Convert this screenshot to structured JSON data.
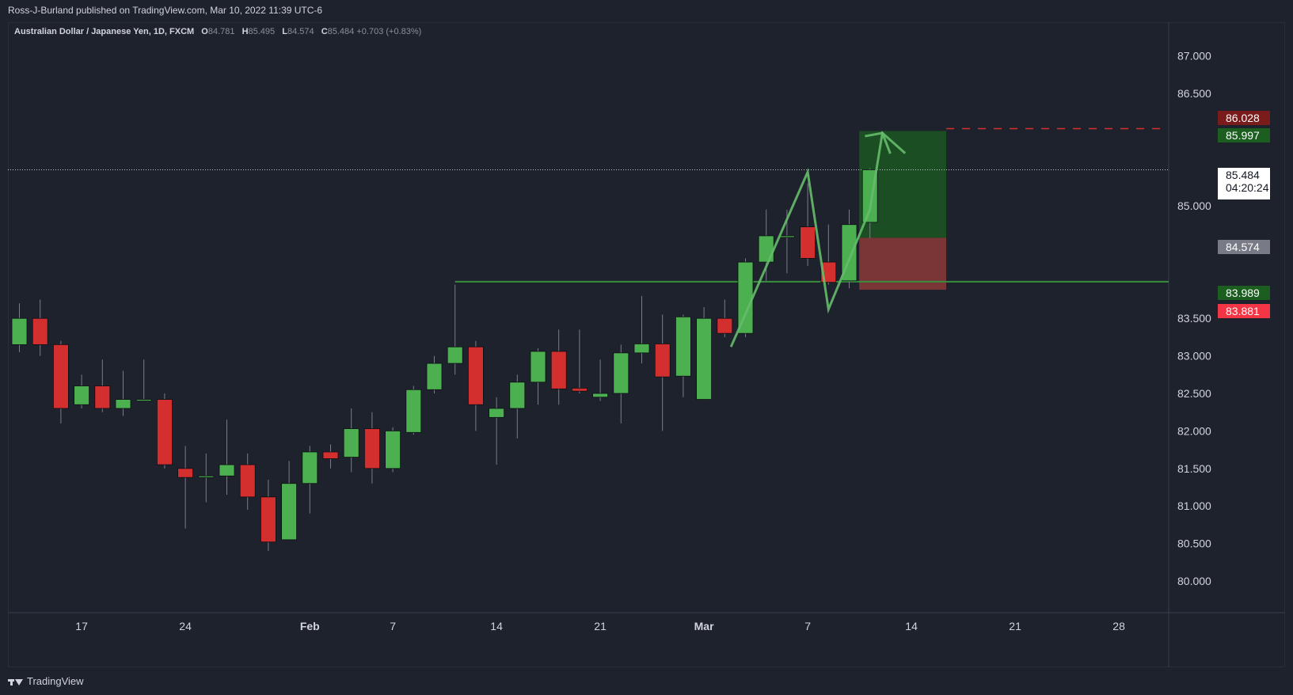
{
  "publisher": "Ross-J-Burland published on TradingView.com, Mar 10, 2022 11:39 UTC-6",
  "symbol_title": "Australian Dollar / Japanese Yen, 1D, FXCM",
  "ohlc": {
    "o_label": "O",
    "o_value": "84.781",
    "h_label": "H",
    "h_value": "85.495",
    "l_label": "L",
    "l_value": "84.574",
    "c_label": "C",
    "c_value": "85.484",
    "change": "+0.703 (+0.83%)"
  },
  "footer_brand": "TradingView",
  "price_tags": {
    "stop_top": "86.028",
    "target": "85.997",
    "last_price": "85.484",
    "countdown": "04:20:24",
    "entry": "84.574",
    "support": "83.989",
    "stop": "83.881"
  },
  "colors": {
    "background": "#1e222d",
    "up": "#4caf50",
    "down": "#d32f2f",
    "support_line": "#388e3c",
    "target_zone": "#1b5e20",
    "stop_zone": "#8b3a3a"
  },
  "chart_data": {
    "type": "candlestick",
    "title": "Australian Dollar / Japanese Yen, 1D, FXCM",
    "y_axis_ticks": [
      "87.000",
      "86.500",
      "85.000",
      "83.500",
      "83.000",
      "82.500",
      "82.000",
      "81.500",
      "81.000",
      "80.500",
      "80.000"
    ],
    "y_tick_values": [
      87.0,
      86.5,
      85.0,
      83.5,
      83.0,
      82.5,
      82.0,
      81.5,
      81.0,
      80.5,
      80.0
    ],
    "ylim": [
      79.6,
      87.5
    ],
    "x_axis_ticks": [
      {
        "label": "17",
        "index": 3
      },
      {
        "label": "24",
        "index": 8
      },
      {
        "label": "Feb",
        "index": 14
      },
      {
        "label": "7",
        "index": 18
      },
      {
        "label": "14",
        "index": 23
      },
      {
        "label": "21",
        "index": 28
      },
      {
        "label": "Mar",
        "index": 33
      },
      {
        "label": "7",
        "index": 38
      },
      {
        "label": "14",
        "index": 43
      },
      {
        "label": "21",
        "index": 48
      },
      {
        "label": "28",
        "index": 53
      }
    ],
    "candles": [
      {
        "o": 83.15,
        "h": 83.7,
        "l": 83.05,
        "c": 83.5
      },
      {
        "o": 83.5,
        "h": 83.75,
        "l": 83.0,
        "c": 83.15
      },
      {
        "o": 83.15,
        "h": 83.2,
        "l": 82.1,
        "c": 82.3
      },
      {
        "o": 82.35,
        "h": 82.75,
        "l": 82.3,
        "c": 82.6
      },
      {
        "o": 82.6,
        "h": 82.95,
        "l": 82.25,
        "c": 82.3
      },
      {
        "o": 82.3,
        "h": 82.8,
        "l": 82.2,
        "c": 82.42
      },
      {
        "o": 82.42,
        "h": 82.95,
        "l": 82.42,
        "c": 82.42
      },
      {
        "o": 82.42,
        "h": 82.5,
        "l": 81.5,
        "c": 81.55
      },
      {
        "o": 81.5,
        "h": 81.8,
        "l": 80.7,
        "c": 81.38
      },
      {
        "o": 81.38,
        "h": 81.7,
        "l": 81.05,
        "c": 81.4
      },
      {
        "o": 81.4,
        "h": 82.15,
        "l": 81.15,
        "c": 81.55
      },
      {
        "o": 81.55,
        "h": 81.7,
        "l": 80.95,
        "c": 81.12
      },
      {
        "o": 81.12,
        "h": 81.35,
        "l": 80.4,
        "c": 80.52
      },
      {
        "o": 80.55,
        "h": 81.6,
        "l": 80.55,
        "c": 81.3
      },
      {
        "o": 81.3,
        "h": 81.8,
        "l": 80.9,
        "c": 81.72
      },
      {
        "o": 81.72,
        "h": 81.82,
        "l": 81.5,
        "c": 81.63
      },
      {
        "o": 81.65,
        "h": 82.3,
        "l": 81.45,
        "c": 82.03
      },
      {
        "o": 82.03,
        "h": 82.25,
        "l": 81.3,
        "c": 81.5
      },
      {
        "o": 81.5,
        "h": 82.05,
        "l": 81.45,
        "c": 82.0
      },
      {
        "o": 81.98,
        "h": 82.6,
        "l": 81.95,
        "c": 82.55
      },
      {
        "o": 82.55,
        "h": 83.0,
        "l": 82.5,
        "c": 82.9
      },
      {
        "o": 82.9,
        "h": 83.95,
        "l": 82.75,
        "c": 83.12
      },
      {
        "o": 83.12,
        "h": 83.2,
        "l": 82.0,
        "c": 82.35
      },
      {
        "o": 82.18,
        "h": 82.45,
        "l": 81.55,
        "c": 82.3
      },
      {
        "o": 82.3,
        "h": 82.75,
        "l": 81.9,
        "c": 82.65
      },
      {
        "o": 82.65,
        "h": 83.1,
        "l": 82.35,
        "c": 83.06
      },
      {
        "o": 83.06,
        "h": 83.35,
        "l": 82.35,
        "c": 82.56
      },
      {
        "o": 82.57,
        "h": 83.35,
        "l": 82.5,
        "c": 82.53
      },
      {
        "o": 82.45,
        "h": 82.95,
        "l": 82.4,
        "c": 82.5
      },
      {
        "o": 82.5,
        "h": 83.15,
        "l": 82.1,
        "c": 83.04
      },
      {
        "o": 83.04,
        "h": 83.8,
        "l": 82.9,
        "c": 83.16
      },
      {
        "o": 83.16,
        "h": 83.55,
        "l": 82.0,
        "c": 82.72
      },
      {
        "o": 82.73,
        "h": 83.55,
        "l": 82.45,
        "c": 83.52
      },
      {
        "o": 82.42,
        "h": 83.65,
        "l": 82.42,
        "c": 83.5
      },
      {
        "o": 83.5,
        "h": 83.75,
        "l": 83.25,
        "c": 83.3
      },
      {
        "o": 83.3,
        "h": 84.3,
        "l": 83.25,
        "c": 84.25
      },
      {
        "o": 84.25,
        "h": 84.95,
        "l": 84.0,
        "c": 84.6
      },
      {
        "o": 84.58,
        "h": 84.95,
        "l": 84.1,
        "c": 84.6
      },
      {
        "o": 84.72,
        "h": 85.3,
        "l": 84.2,
        "c": 84.3
      },
      {
        "o": 84.25,
        "h": 84.75,
        "l": 83.95,
        "c": 83.98
      },
      {
        "o": 84.0,
        "h": 84.95,
        "l": 83.9,
        "c": 84.75
      },
      {
        "o": 84.78,
        "h": 85.5,
        "l": 84.57,
        "c": 85.48
      }
    ],
    "support_level": 83.989,
    "position": {
      "entry": 84.574,
      "target": 85.997,
      "stop": 83.881,
      "start_index": 41,
      "end_index": 45
    },
    "target_line": 86.028,
    "projection_path": [
      {
        "i": 34.3,
        "p": 83.12
      },
      {
        "i": 38.0,
        "p": 85.45
      },
      {
        "i": 39.0,
        "p": 83.62
      },
      {
        "i": 41.0,
        "p": 84.95
      },
      {
        "i": 41.6,
        "p": 85.97
      },
      {
        "i": 42.7,
        "p": 85.7
      }
    ]
  }
}
